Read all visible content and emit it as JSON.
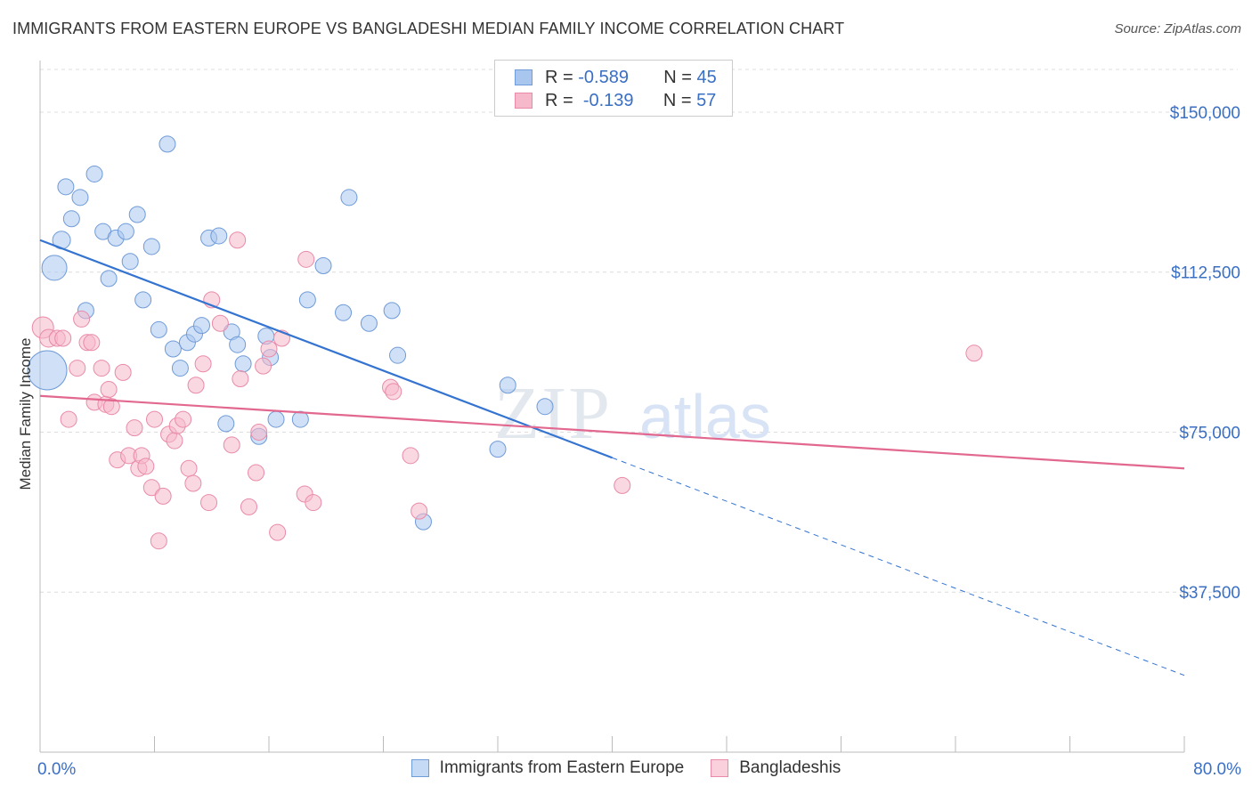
{
  "header": {
    "title": "IMMIGRANTS FROM EASTERN EUROPE VS BANGLADESHI MEDIAN FAMILY INCOME CORRELATION CHART",
    "source": "Source: ZipAtlas.com"
  },
  "watermark": {
    "zip": "ZIP",
    "atlas": "atlas"
  },
  "legend": {
    "rows": [
      {
        "r_label": "R =",
        "r_value": "-0.589",
        "n_label": "N =",
        "n_value": "45",
        "color": "#a9c7ee",
        "stroke": "#6f9bd8"
      },
      {
        "r_label": "R =",
        "r_value": "-0.139",
        "n_label": "N =",
        "n_value": "57",
        "color": "#f6b8cb",
        "stroke": "#e98aa8"
      }
    ]
  },
  "chart_data": {
    "type": "scatter",
    "title": "IMMIGRANTS FROM EASTERN EUROPE VS BANGLADESHI MEDIAN FAMILY INCOME CORRELATION CHART",
    "xlabel": "",
    "ylabel": "Median Family Income",
    "xlim": [
      0,
      80
    ],
    "ylim": [
      0,
      160000
    ],
    "x_tick_labels": [
      "0.0%",
      "80.0%"
    ],
    "y_ticks": [
      {
        "value": 37500,
        "label": "$37,500"
      },
      {
        "value": 75000,
        "label": "$75,000"
      },
      {
        "value": 112500,
        "label": "$112,500"
      },
      {
        "value": 150000,
        "label": "$150,000"
      }
    ],
    "grid": true,
    "legend_position": "bottom-center",
    "series": [
      {
        "name": "Immigrants from Eastern Europe",
        "color": "#a9c7ee",
        "stroke": "#6f9bd8",
        "line_color": "#3474d0",
        "trend": {
          "x1": 0,
          "y1": 120000,
          "x2": 40,
          "y2": 69000,
          "dash_to_x": 80,
          "dash_to_y": 18000
        },
        "points": [
          [
            1.0,
            113500,
            14
          ],
          [
            0.5,
            89500,
            22
          ],
          [
            1.5,
            120000,
            10
          ],
          [
            1.8,
            132500,
            9
          ],
          [
            2.2,
            125000,
            9
          ],
          [
            2.8,
            130000,
            9
          ],
          [
            3.2,
            103500,
            9
          ],
          [
            3.8,
            135500,
            9
          ],
          [
            4.4,
            122000,
            9
          ],
          [
            4.8,
            111000,
            9
          ],
          [
            5.3,
            120500,
            9
          ],
          [
            6.0,
            122000,
            9
          ],
          [
            6.3,
            115000,
            9
          ],
          [
            6.8,
            126000,
            9
          ],
          [
            7.2,
            106000,
            9
          ],
          [
            7.8,
            118500,
            9
          ],
          [
            8.3,
            99000,
            9
          ],
          [
            8.9,
            142500,
            9
          ],
          [
            9.3,
            94500,
            9
          ],
          [
            9.8,
            90000,
            9
          ],
          [
            10.3,
            96000,
            9
          ],
          [
            10.8,
            98000,
            9
          ],
          [
            11.3,
            100000,
            9
          ],
          [
            11.8,
            120500,
            9
          ],
          [
            12.5,
            121000,
            9
          ],
          [
            13.0,
            77000,
            9
          ],
          [
            13.4,
            98500,
            9
          ],
          [
            13.8,
            95500,
            9
          ],
          [
            14.2,
            91000,
            9
          ],
          [
            15.3,
            74000,
            9
          ],
          [
            15.8,
            97500,
            9
          ],
          [
            16.1,
            92500,
            9
          ],
          [
            16.5,
            78000,
            9
          ],
          [
            18.2,
            78000,
            9
          ],
          [
            18.7,
            106000,
            9
          ],
          [
            19.8,
            114000,
            9
          ],
          [
            21.2,
            103000,
            9
          ],
          [
            21.6,
            130000,
            9
          ],
          [
            23.0,
            100500,
            9
          ],
          [
            24.6,
            103500,
            9
          ],
          [
            25.0,
            93000,
            9
          ],
          [
            26.8,
            54000,
            9
          ],
          [
            32.0,
            71000,
            9
          ],
          [
            32.7,
            86000,
            9
          ],
          [
            35.3,
            81000,
            9
          ]
        ]
      },
      {
        "name": "Bangladeshis",
        "color": "#f6b8cb",
        "stroke": "#e98aa8",
        "line_color": "#e2688f",
        "trend": {
          "x1": 0,
          "y1": 83500,
          "x2": 80,
          "y2": 66500
        },
        "points": [
          [
            0.2,
            99500,
            12
          ],
          [
            0.6,
            97000,
            10
          ],
          [
            1.2,
            97000,
            9
          ],
          [
            1.6,
            97000,
            9
          ],
          [
            2.0,
            78000,
            9
          ],
          [
            2.6,
            90000,
            9
          ],
          [
            2.9,
            101500,
            9
          ],
          [
            3.3,
            96000,
            9
          ],
          [
            3.6,
            96000,
            9
          ],
          [
            3.8,
            82000,
            9
          ],
          [
            4.3,
            90000,
            9
          ],
          [
            4.6,
            81500,
            9
          ],
          [
            4.8,
            85000,
            9
          ],
          [
            5.0,
            81000,
            9
          ],
          [
            5.4,
            68500,
            9
          ],
          [
            5.8,
            89000,
            9
          ],
          [
            6.2,
            69500,
            9
          ],
          [
            6.6,
            76000,
            9
          ],
          [
            6.9,
            66500,
            9
          ],
          [
            7.1,
            69500,
            9
          ],
          [
            7.4,
            67000,
            9
          ],
          [
            7.8,
            62000,
            9
          ],
          [
            8.0,
            78000,
            9
          ],
          [
            8.3,
            49500,
            9
          ],
          [
            8.6,
            60000,
            9
          ],
          [
            9.0,
            74500,
            9
          ],
          [
            9.4,
            73000,
            9
          ],
          [
            9.6,
            76500,
            9
          ],
          [
            10.0,
            78000,
            9
          ],
          [
            10.4,
            66500,
            9
          ],
          [
            10.7,
            63000,
            9
          ],
          [
            10.9,
            86000,
            9
          ],
          [
            11.4,
            91000,
            9
          ],
          [
            11.8,
            58500,
            9
          ],
          [
            12.0,
            106000,
            9
          ],
          [
            12.6,
            100500,
            9
          ],
          [
            13.4,
            72000,
            9
          ],
          [
            13.8,
            120000,
            9
          ],
          [
            14.0,
            87500,
            9
          ],
          [
            14.6,
            57500,
            9
          ],
          [
            15.1,
            65500,
            9
          ],
          [
            15.3,
            75000,
            9
          ],
          [
            15.6,
            90500,
            9
          ],
          [
            16.0,
            94500,
            9
          ],
          [
            16.6,
            51500,
            9
          ],
          [
            16.9,
            97000,
            9
          ],
          [
            18.5,
            60500,
            9
          ],
          [
            18.6,
            115500,
            9
          ],
          [
            19.1,
            58500,
            9
          ],
          [
            24.5,
            85500,
            9
          ],
          [
            24.7,
            84500,
            9
          ],
          [
            25.9,
            69500,
            9
          ],
          [
            26.5,
            56500,
            9
          ],
          [
            40.7,
            62500,
            9
          ],
          [
            65.3,
            93500,
            9
          ],
          [
            18.2,
            97500,
            0
          ],
          [
            7.0,
            97500,
            0
          ]
        ]
      }
    ]
  }
}
